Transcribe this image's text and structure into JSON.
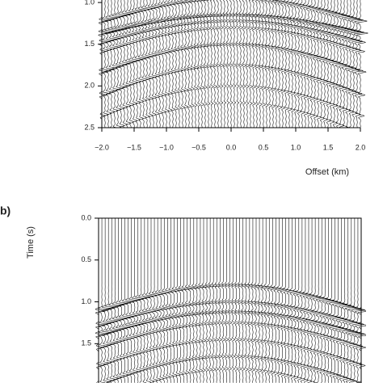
{
  "chart_data": [
    {
      "type": "wiggle",
      "xlabel": "Offset (km)",
      "xlim": [
        -2,
        2
      ],
      "xticks": [
        {
          "value": -2,
          "label": "−2.0"
        },
        {
          "value": -1.5,
          "label": "−1.5"
        },
        {
          "value": -1,
          "label": "−1.0"
        },
        {
          "value": -0.5,
          "label": "−0.5"
        },
        {
          "value": 0,
          "label": "0.0"
        },
        0.5,
        {
          "value": 1,
          "label": "1.0"
        },
        1.5,
        {
          "value": 2,
          "label": "2.0"
        }
      ],
      "ylim": [
        0.97,
        2.5
      ],
      "y_inverted": true,
      "yticks": [
        {
          "value": 1,
          "label": "1.0"
        },
        1.5,
        {
          "value": 2,
          "label": "2.0"
        },
        2.5
      ]
    },
    {
      "type": "wiggle",
      "label": "b)",
      "ylabel": "Time (s)",
      "xlim": [
        -2,
        2
      ],
      "ylim": [
        0,
        1.97
      ],
      "y_inverted": true,
      "yticks": [
        {
          "value": 0,
          "label": "0.0"
        },
        0.5,
        {
          "value": 1,
          "label": "1.0"
        },
        1.5
      ]
    }
  ]
}
